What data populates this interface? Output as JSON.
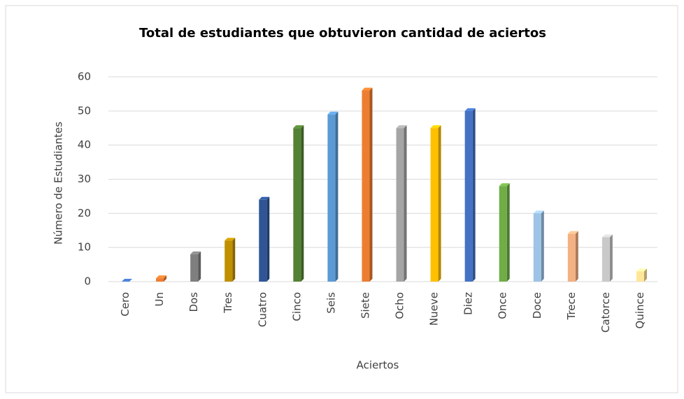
{
  "chart_data": {
    "type": "bar",
    "title": "Total de estudiantes que obtuvieron cantidad de aciertos",
    "x_label": "Aciertos",
    "y_label": "Número de Estudiantes",
    "categories": [
      "Cero",
      "Un",
      "Dos",
      "Tres",
      "Cuatro",
      "Cinco",
      "Seis",
      "Siete",
      "Ocho",
      "Nueve",
      "Diez",
      "Once",
      "Doce",
      "Trece",
      "Catorce",
      "Quince"
    ],
    "values": [
      0,
      1,
      8,
      12,
      24,
      45,
      49,
      56,
      45,
      45,
      50,
      28,
      20,
      14,
      13,
      3
    ],
    "colors": [
      "#4472c4",
      "#ed7d31",
      "#7f7f7f",
      "#c09000",
      "#2f5597",
      "#548235",
      "#5b9bd5",
      "#ed7d31",
      "#a5a5a5",
      "#ffc000",
      "#4472c4",
      "#70ad47",
      "#9dc3e6",
      "#f4b183",
      "#c9c9c9",
      "#ffe699"
    ],
    "ylim": [
      0,
      60
    ],
    "yticks": [
      0,
      10,
      20,
      30,
      40,
      50,
      60
    ],
    "grid": true
  }
}
